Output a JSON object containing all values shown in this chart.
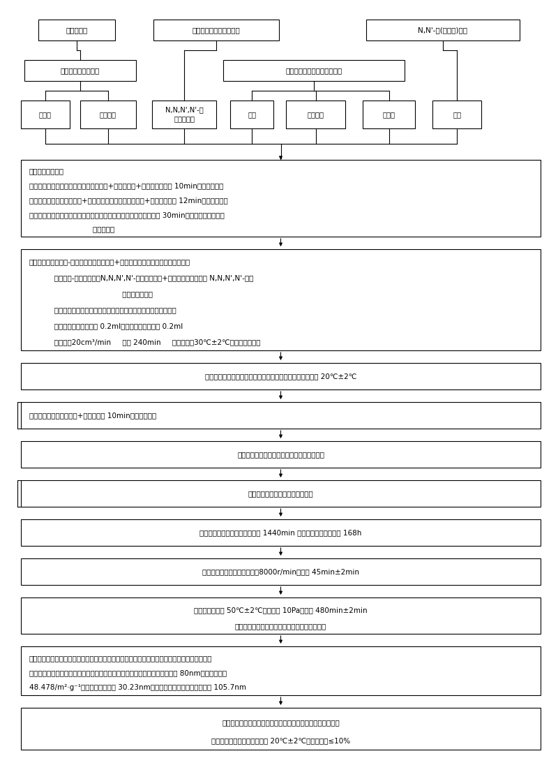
{
  "bg_color": "#ffffff",
  "border_color": "#000000",
  "text_color": "#000000",
  "fig_width": 8.0,
  "fig_height": 11.06,
  "dpi": 100,
  "boxes": [
    {
      "id": "r1_1",
      "text": "甲基丙烯酸",
      "col": 0,
      "row": 0
    },
    {
      "id": "r1_2",
      "text": "甲基丙烯酸二乙氨基乙醇",
      "col": 1,
      "row": 0
    },
    {
      "id": "r1_3",
      "text": "N,N'-双(丙烯酰)胱胺",
      "col": 2,
      "row": 0
    },
    {
      "id": "r2_1",
      "text": "失水山梨醇单油酸酯",
      "col": 0,
      "row": 1
    },
    {
      "id": "r2_2",
      "text": "聚氧乙烯失水山梨醇单油酸酯",
      "col": 1,
      "row": 1
    },
    {
      "id": "r3_1",
      "text": "异辛烷",
      "col": 0,
      "row": 2
    },
    {
      "id": "r3_2",
      "text": "过硫酸铵",
      "col": 1,
      "row": 2
    },
    {
      "id": "r3_3",
      "text": "N,N,N',N'-四\n甲基乙二胺",
      "col": 2,
      "row": 2
    },
    {
      "id": "r3_4",
      "text": "丙酮",
      "col": 3,
      "row": 2
    },
    {
      "id": "r3_5",
      "text": "去离子水",
      "col": 4,
      "row": 2
    },
    {
      "id": "r3_6",
      "text": "洁净水",
      "col": 5,
      "row": 2
    },
    {
      "id": "r3_7",
      "text": "氮气",
      "col": 6,
      "row": 2
    }
  ],
  "steps": [
    {
      "id": "step1",
      "lines": [
        "配制反相微乳液：",
        "配制水相溶液：甲基丙烯酸二乙氨基乙酯+甲基丙烯酸+去离子水，搅拌 10min，成水相溶液",
        "配制油相溶液：失水山梨醇+聚氧乙烯失水山梨醇单油酸酯+异辛烷，搅拌 12min，成油相溶液",
        "配制油包水反相微乳液：油相溶液为母液，滴加水相溶液，搅拌时间 30min，成：透明泛微蓝光",
        "                            反相微乳液"
      ],
      "align": "left"
    },
    {
      "id": "step2",
      "lines": [
        "聚合反应：配制氧化-还原引发剂：过硫酸铵+去离子水、搅拌，成过硫酸铵水溶液",
        "           配制氧化-还原引发剂：N,N,N',N'-四甲苯乙二胺+去离子水、搅拌，成 N,N,N',N'-四甲",
        "                                         苯乙二胺水溶液",
        "           设备：电热皿、水浴缸、四口烧瓶、氮气管、滴液漏斗、出气管",
        "           滴加：过硫酸铵水溶液 0.2ml、亚硫酸氢钠水溶液 0.2ml",
        "           充氮气：20cm³/min     搅拌 240min     加热恒温：30℃±2℃，成微凝胶乳液"
      ],
      "align": "left"
    },
    {
      "id": "step3",
      "lines": [
        "冷却：关闭加热皿、氮气瓶、搅拌器，水浴水温度自然降至 20℃±2℃"
      ],
      "align": "center"
    },
    {
      "id": "step4",
      "lines": [
        "破乳、沉淀：微凝胶乳液+丙酮，搅拌 10min，破乳、沉淀"
      ],
      "align": "left"
    },
    {
      "id": "step5",
      "lines": [
        "抽滤：抽滤瓶、中速定性滤纸、留置产物滤饼"
      ],
      "align": "center"
    },
    {
      "id": "step6",
      "lines": [
        "洗涤：丙酮、搅拌，重复进行十次"
      ],
      "align": "center"
    },
    {
      "id": "step7",
      "lines": [
        "透析：透析袋、去离子水，每隔 1440min 换一次去离子水，透析 168h"
      ],
      "align": "center"
    },
    {
      "id": "step8",
      "lines": [
        "离心分离：离心机、离心釜，8000r/min，时间 45min±2min"
      ],
      "align": "center"
    },
    {
      "id": "step9",
      "lines": [
        "真空干燥：温度 50℃±2℃，真空度 10Pa，时间 480min±2min",
        "干燥后成：聚两性电解质微乳胶乳白色粉体颗粒"
      ],
      "align": "center"
    },
    {
      "id": "step10",
      "lines": [
        "检测、化验、分析、表征：对产物形貌、色泽、化学组分、颗粒直径、化学物理性能进行化验、",
        "分析、表征，产物为乳白色网孔形疏松状粉体颗粒，干态球形颗粒平均直径为 80nm，比表面积为",
        "48.478/m²·g⁻¹，网孔平均直径为 30.23nm，等电点处粒子流体力学直径为 105.7nm"
      ],
      "align": "left"
    },
    {
      "id": "step11",
      "lines": [
        "储存：密闭储存玻璃容器、防水、防潮、防晒、防酸碱盐侵蚀",
        "阴凉、干燥、洁净环境，温度 20℃±2℃，相对湿度≤10%"
      ],
      "align": "center"
    }
  ]
}
